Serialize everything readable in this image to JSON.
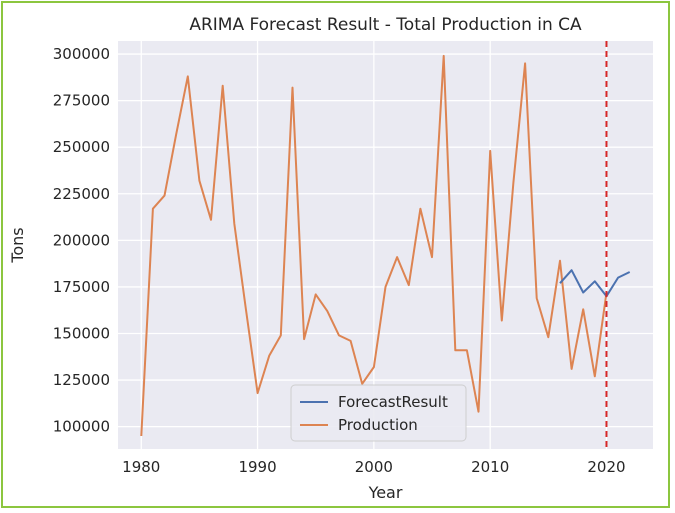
{
  "chart_data": {
    "type": "line",
    "title": "ARIMA Forecast Result - Total Production in CA",
    "xlabel": "Year",
    "ylabel": "Tons",
    "xlim": [
      1978,
      2024
    ],
    "ylim": [
      88000,
      307000
    ],
    "xticks": [
      1980,
      1990,
      2000,
      2010,
      2020
    ],
    "yticks": [
      100000,
      125000,
      150000,
      175000,
      200000,
      225000,
      250000,
      275000,
      300000
    ],
    "grid": true,
    "legend_position": "bottom-center",
    "vline": {
      "x": 2020,
      "color": "#d62728",
      "style": "dashed"
    },
    "series": [
      {
        "name": "ForecastResult",
        "color": "#4c72b0",
        "x": [
          2016,
          2017,
          2018,
          2019,
          2020,
          2021,
          2022
        ],
        "y": [
          177000,
          184000,
          172000,
          178000,
          170000,
          180000,
          183000
        ]
      },
      {
        "name": "Production",
        "color": "#dd8452",
        "x": [
          1980,
          1981,
          1982,
          1983,
          1984,
          1985,
          1986,
          1987,
          1988,
          1989,
          1990,
          1991,
          1992,
          1993,
          1994,
          1995,
          1996,
          1997,
          1998,
          1999,
          2000,
          2001,
          2002,
          2003,
          2004,
          2005,
          2006,
          2007,
          2008,
          2009,
          2010,
          2011,
          2012,
          2013,
          2014,
          2015,
          2016,
          2017,
          2018,
          2019,
          2020
        ],
        "y": [
          95000,
          217000,
          224000,
          257000,
          288000,
          232000,
          211000,
          283000,
          209000,
          163000,
          118000,
          138000,
          149000,
          282000,
          147000,
          171000,
          162000,
          149000,
          146000,
          123000,
          132000,
          175000,
          191000,
          176000,
          217000,
          191000,
          299000,
          141000,
          141000,
          108000,
          248000,
          157000,
          231000,
          295000,
          169000,
          148000,
          189000,
          131000,
          163000,
          127000,
          172000
        ]
      }
    ]
  }
}
